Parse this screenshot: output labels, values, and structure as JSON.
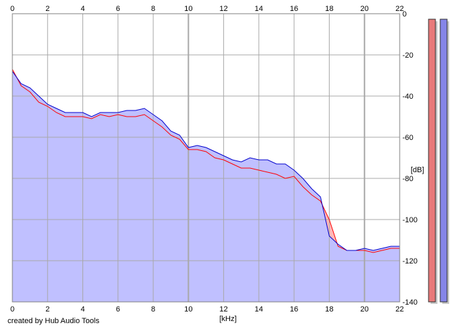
{
  "credit": "created by Hub Audio Tools",
  "chart_data": {
    "type": "area",
    "xlabel": "[kHz]",
    "ylabel": "[dB]",
    "xlim": [
      0,
      22
    ],
    "ylim": [
      -140,
      0
    ],
    "x_ticks": [
      0,
      2,
      4,
      6,
      8,
      10,
      12,
      14,
      16,
      18,
      20,
      22
    ],
    "y_ticks": [
      0,
      -20,
      -40,
      -60,
      -80,
      -100,
      -120,
      -140
    ],
    "grid": true,
    "series": [
      {
        "color": "#ff0000",
        "fill": "#ffb8b8",
        "x": [
          0,
          0.5,
          1,
          1.5,
          2,
          2.5,
          3,
          3.5,
          4,
          4.5,
          5,
          5.5,
          6,
          6.5,
          7,
          7.5,
          8,
          8.5,
          9,
          9.5,
          10,
          10.5,
          11,
          11.5,
          12,
          12.5,
          13,
          13.5,
          14,
          14.5,
          15,
          15.5,
          16,
          16.5,
          17,
          17.5,
          18,
          18.5,
          19,
          19.5,
          20,
          20.5,
          21,
          21.5,
          22
        ],
        "y": [
          -27,
          -35,
          -38,
          -43,
          -45,
          -48,
          -50,
          -50,
          -50,
          -51,
          -49,
          -50,
          -49,
          -50,
          -50,
          -49,
          -52,
          -55,
          -59,
          -61,
          -66,
          -66,
          -67,
          -70,
          -71,
          -73,
          -75,
          -75,
          -76,
          -77,
          -78,
          -80,
          -79,
          -84,
          -88,
          -91,
          -100,
          -113,
          -115,
          -115,
          -115,
          -116,
          -115,
          -114,
          -114
        ]
      },
      {
        "color": "#0000cc",
        "fill": "#c0c0ff",
        "x": [
          0,
          0.5,
          1,
          1.5,
          2,
          2.5,
          3,
          3.5,
          4,
          4.5,
          5,
          5.5,
          6,
          6.5,
          7,
          7.5,
          8,
          8.5,
          9,
          9.5,
          10,
          10.5,
          11,
          11.5,
          12,
          12.5,
          13,
          13.5,
          14,
          14.5,
          15,
          15.5,
          16,
          16.5,
          17,
          17.5,
          18,
          18.5,
          19,
          19.5,
          20,
          20.5,
          21,
          21.5,
          22
        ],
        "y": [
          -28,
          -34,
          -36,
          -40,
          -44,
          -46,
          -48,
          -48,
          -48,
          -50,
          -48,
          -48,
          -48,
          -47,
          -47,
          -46,
          -49,
          -52,
          -57,
          -59,
          -65,
          -64,
          -65,
          -67,
          -69,
          -71,
          -72,
          -70,
          -71,
          -71,
          -73,
          -73,
          -76,
          -80,
          -85,
          -89,
          -108,
          -112,
          -115,
          -115,
          -114,
          -115,
          -114,
          -113,
          -113
        ]
      }
    ]
  },
  "level_meters": [
    {
      "color": "#e87a7a",
      "level": 1.0
    },
    {
      "color": "#8585e8",
      "level": 1.0
    }
  ]
}
